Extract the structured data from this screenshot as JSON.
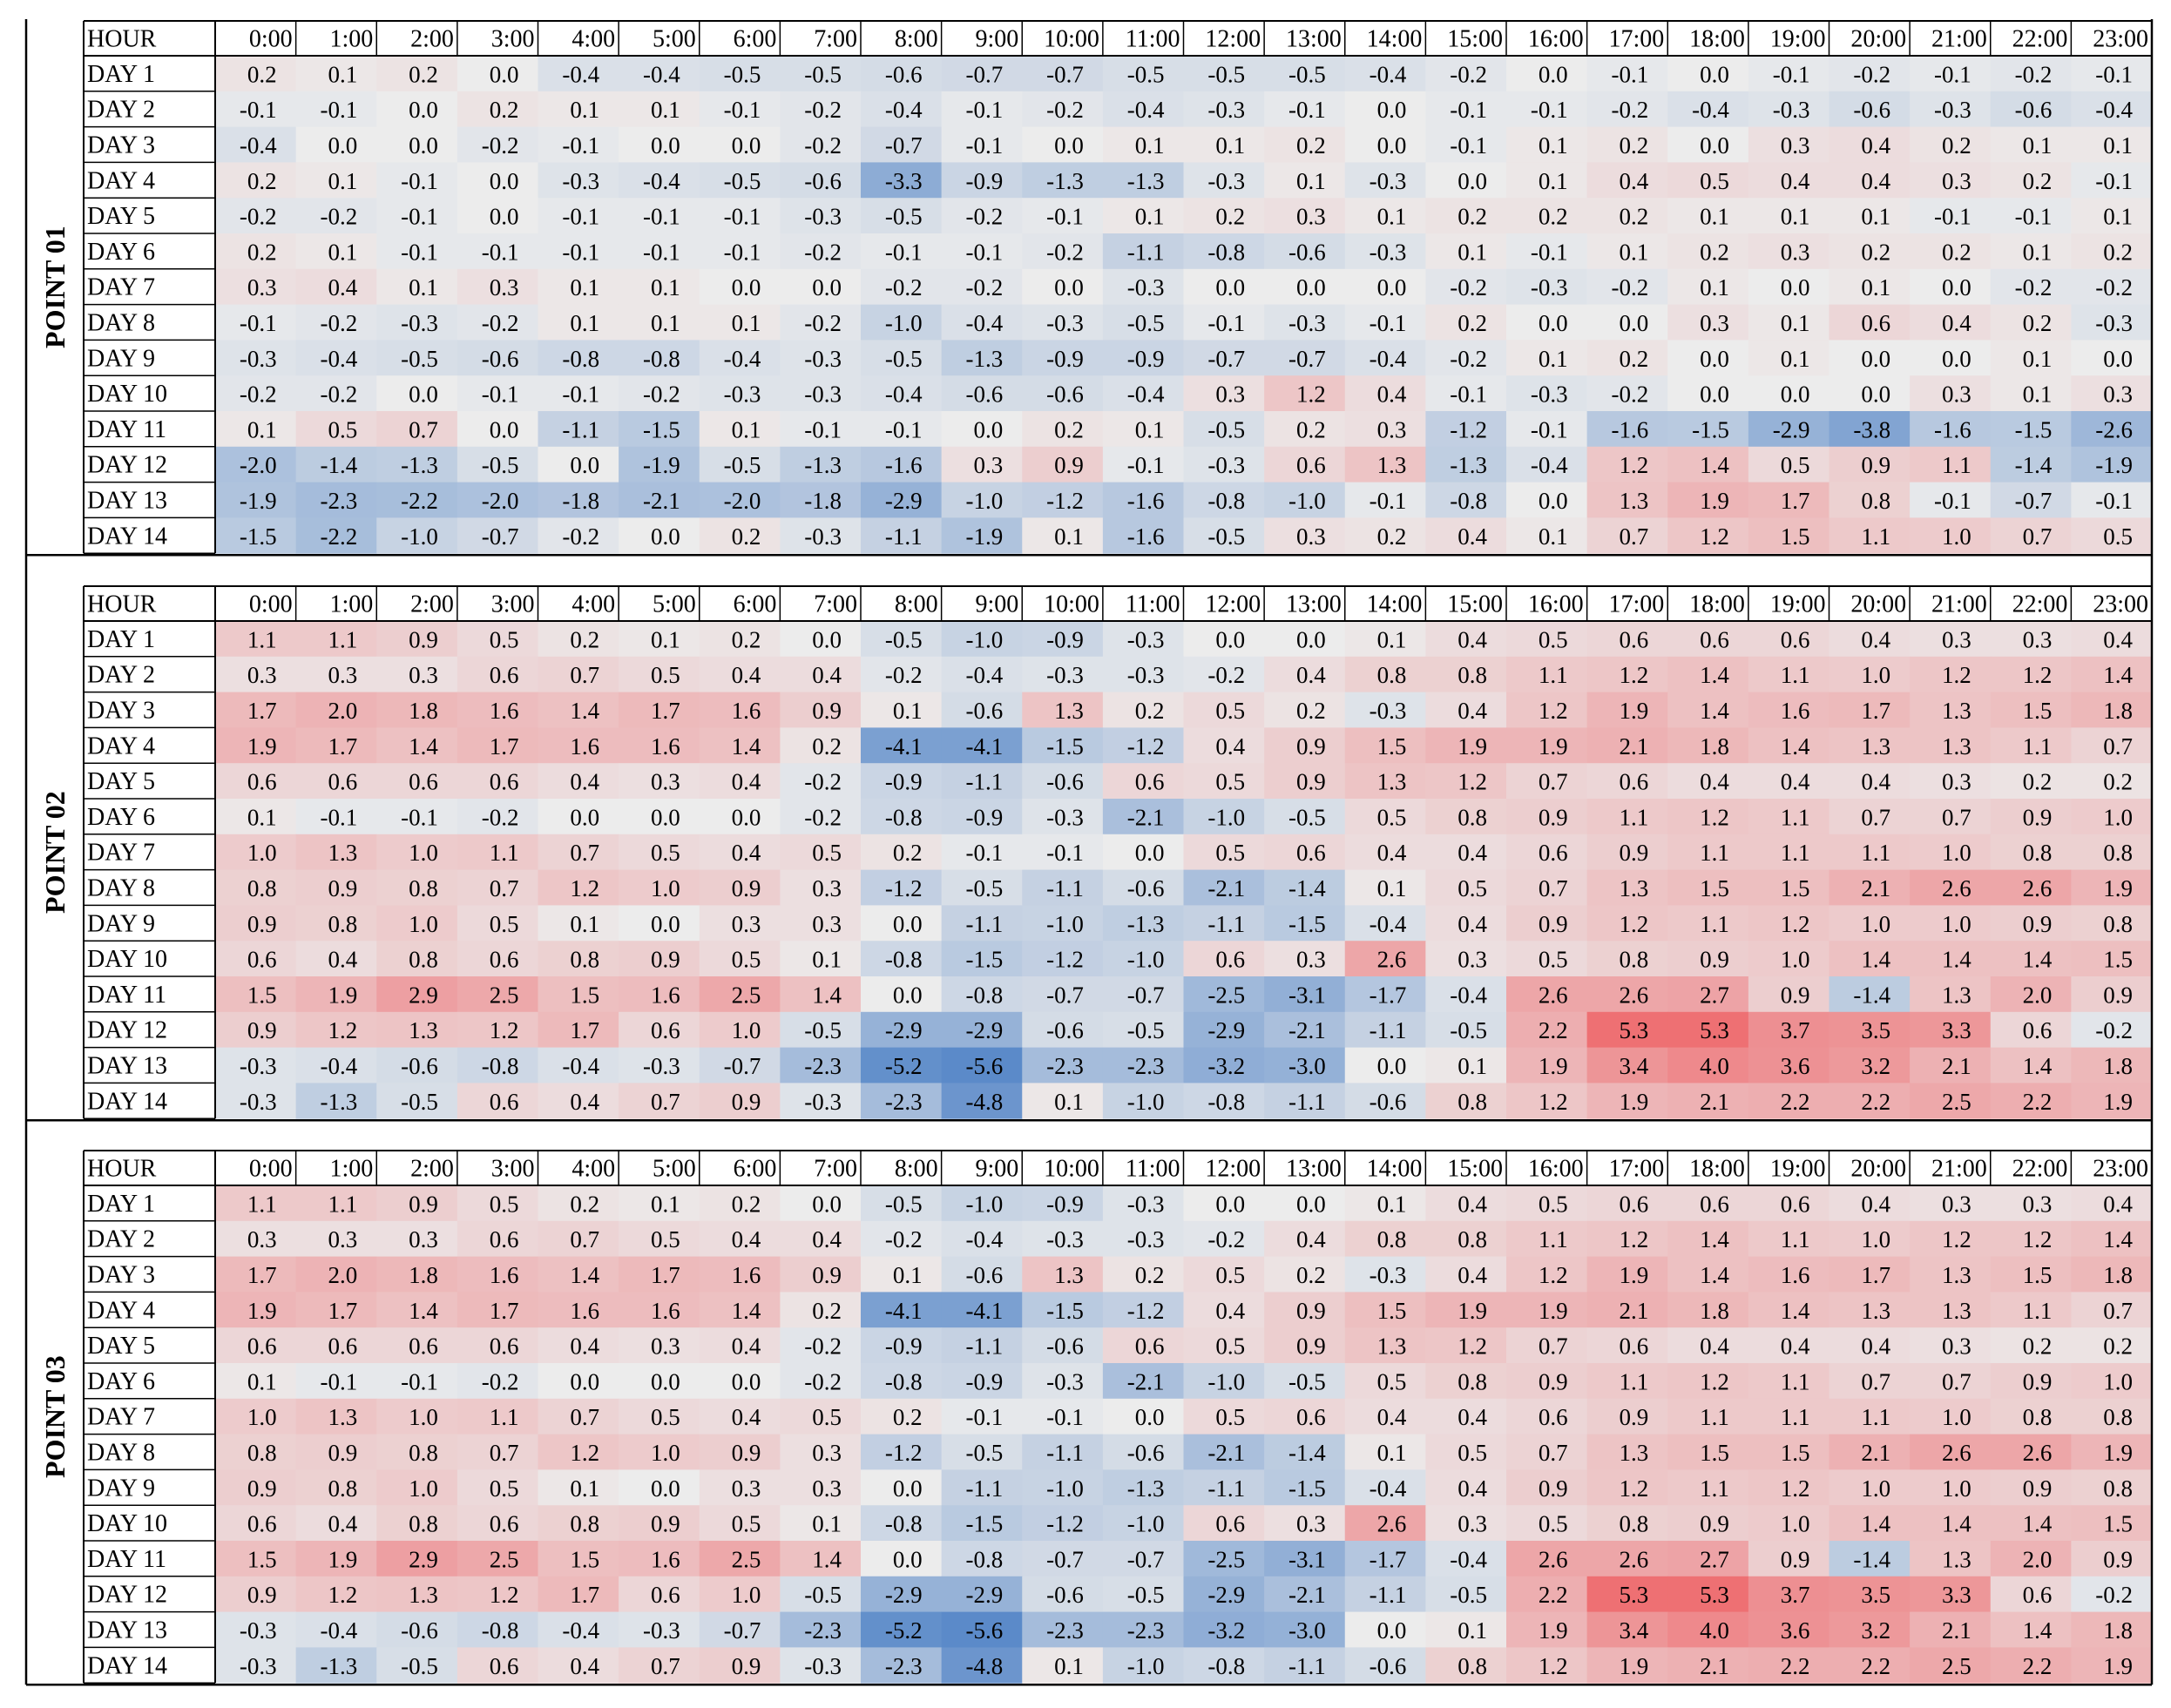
{
  "chart_data": {
    "type": "heatmap",
    "hour_header": "HOUR",
    "hours": [
      "0:00",
      "1:00",
      "2:00",
      "3:00",
      "4:00",
      "5:00",
      "6:00",
      "7:00",
      "8:00",
      "9:00",
      "10:00",
      "11:00",
      "12:00",
      "13:00",
      "14:00",
      "15:00",
      "16:00",
      "17:00",
      "18:00",
      "19:00",
      "20:00",
      "21:00",
      "22:00",
      "23:00"
    ],
    "days": [
      "DAY 1",
      "DAY 2",
      "DAY 3",
      "DAY 4",
      "DAY 5",
      "DAY 6",
      "DAY 7",
      "DAY 8",
      "DAY 9",
      "DAY 10",
      "DAY 11",
      "DAY 12",
      "DAY 13",
      "DAY 14"
    ],
    "color_scale": {
      "negative": "#5b8ac9",
      "neutral": "#ececec",
      "positive": "#ee6a6e"
    },
    "panels": [
      {
        "name": "POINT 01",
        "values": [
          [
            0.2,
            0.1,
            0.2,
            0.0,
            -0.4,
            -0.4,
            -0.5,
            -0.5,
            -0.6,
            -0.7,
            -0.7,
            -0.5,
            -0.5,
            -0.5,
            -0.4,
            -0.2,
            0.0,
            -0.1,
            0.0,
            -0.1,
            -0.2,
            -0.1,
            -0.2,
            -0.1
          ],
          [
            -0.1,
            -0.1,
            0.0,
            0.2,
            0.1,
            0.1,
            -0.1,
            -0.2,
            -0.4,
            -0.1,
            -0.2,
            -0.4,
            -0.3,
            -0.1,
            0.0,
            -0.1,
            -0.1,
            -0.2,
            -0.4,
            -0.3,
            -0.6,
            -0.3,
            -0.6,
            -0.4
          ],
          [
            -0.4,
            0.0,
            0.0,
            -0.2,
            -0.1,
            0.0,
            0.0,
            -0.2,
            -0.7,
            -0.1,
            0.0,
            0.1,
            0.1,
            0.2,
            0.0,
            -0.1,
            0.1,
            0.2,
            0.0,
            0.3,
            0.4,
            0.2,
            0.1,
            0.1
          ],
          [
            0.2,
            0.1,
            -0.1,
            0.0,
            -0.3,
            -0.4,
            -0.5,
            -0.6,
            -3.3,
            -0.9,
            -1.3,
            -1.3,
            -0.3,
            0.1,
            -0.3,
            0.0,
            0.1,
            0.4,
            0.5,
            0.4,
            0.4,
            0.3,
            0.2,
            -0.1
          ],
          [
            -0.2,
            -0.2,
            -0.1,
            0.0,
            -0.1,
            -0.1,
            -0.1,
            -0.3,
            -0.5,
            -0.2,
            -0.1,
            0.1,
            0.2,
            0.3,
            0.1,
            0.2,
            0.2,
            0.2,
            0.1,
            0.1,
            0.1,
            -0.1,
            -0.1,
            0.1
          ],
          [
            0.2,
            0.1,
            -0.1,
            -0.1,
            -0.1,
            -0.1,
            -0.1,
            -0.2,
            -0.1,
            -0.1,
            -0.2,
            -1.1,
            -0.8,
            -0.6,
            -0.3,
            0.1,
            -0.1,
            0.1,
            0.2,
            0.3,
            0.2,
            0.2,
            0.1,
            0.2
          ],
          [
            0.3,
            0.4,
            0.1,
            0.3,
            0.1,
            0.1,
            0.0,
            0.0,
            -0.2,
            -0.2,
            0.0,
            -0.3,
            0.0,
            0.0,
            0.0,
            -0.2,
            -0.3,
            -0.2,
            0.1,
            0.0,
            0.1,
            0.0,
            -0.2,
            -0.2
          ],
          [
            -0.1,
            -0.2,
            -0.3,
            -0.2,
            0.1,
            0.1,
            0.1,
            -0.2,
            -1.0,
            -0.4,
            -0.3,
            -0.5,
            -0.1,
            -0.3,
            -0.1,
            0.2,
            0.0,
            0.0,
            0.3,
            0.1,
            0.6,
            0.4,
            0.2,
            -0.3
          ],
          [
            -0.3,
            -0.4,
            -0.5,
            -0.6,
            -0.8,
            -0.8,
            -0.4,
            -0.3,
            -0.5,
            -1.3,
            -0.9,
            -0.9,
            -0.7,
            -0.7,
            -0.4,
            -0.2,
            0.1,
            0.2,
            0.0,
            0.1,
            0.0,
            0.0,
            0.1,
            0.0
          ],
          [
            -0.2,
            -0.2,
            0.0,
            -0.1,
            -0.1,
            -0.2,
            -0.3,
            -0.3,
            -0.4,
            -0.6,
            -0.6,
            -0.4,
            0.3,
            1.2,
            0.4,
            -0.1,
            -0.3,
            -0.2,
            0.0,
            0.0,
            0.0,
            0.3,
            0.1,
            0.3
          ],
          [
            0.1,
            0.5,
            0.7,
            0.0,
            -1.1,
            -1.5,
            0.1,
            -0.1,
            -0.1,
            0.0,
            0.2,
            0.1,
            -0.5,
            0.2,
            0.3,
            -1.2,
            -0.1,
            -1.6,
            -1.5,
            -2.9,
            -3.8,
            -1.6,
            -1.5,
            -2.6
          ],
          [
            -2.0,
            -1.4,
            -1.3,
            -0.5,
            0.0,
            -1.9,
            -0.5,
            -1.3,
            -1.6,
            0.3,
            0.9,
            -0.1,
            -0.3,
            0.6,
            1.3,
            -1.3,
            -0.4,
            1.2,
            1.4,
            0.5,
            0.9,
            1.1,
            -1.4,
            -1.9
          ],
          [
            -1.9,
            -2.3,
            -2.2,
            -2.0,
            -1.8,
            -2.1,
            -2.0,
            -1.8,
            -2.9,
            -1.0,
            -1.2,
            -1.6,
            -0.8,
            -1.0,
            -0.1,
            -0.8,
            0.0,
            1.3,
            1.9,
            1.7,
            0.8,
            -0.1,
            -0.7,
            -0.1
          ],
          [
            -1.5,
            -2.2,
            -1.0,
            -0.7,
            -0.2,
            0.0,
            0.2,
            -0.3,
            -1.1,
            -1.9,
            0.1,
            -1.6,
            -0.5,
            0.3,
            0.2,
            0.4,
            0.1,
            0.7,
            1.2,
            1.5,
            1.1,
            1.0,
            0.7,
            0.5
          ]
        ]
      },
      {
        "name": "POINT 02",
        "values": [
          [
            1.1,
            1.1,
            0.9,
            0.5,
            0.2,
            0.1,
            0.2,
            0.0,
            -0.5,
            -1.0,
            -0.9,
            -0.3,
            0.0,
            0.0,
            0.1,
            0.4,
            0.5,
            0.6,
            0.6,
            0.6,
            0.4,
            0.3,
            0.3,
            0.4
          ],
          [
            0.3,
            0.3,
            0.3,
            0.6,
            0.7,
            0.5,
            0.4,
            0.4,
            -0.2,
            -0.4,
            -0.3,
            -0.3,
            -0.2,
            0.4,
            0.8,
            0.8,
            1.1,
            1.2,
            1.4,
            1.1,
            1.0,
            1.2,
            1.2,
            1.4
          ],
          [
            1.7,
            2.0,
            1.8,
            1.6,
            1.4,
            1.7,
            1.6,
            0.9,
            0.1,
            -0.6,
            1.3,
            0.2,
            0.5,
            0.2,
            -0.3,
            0.4,
            1.2,
            1.9,
            1.4,
            1.6,
            1.7,
            1.3,
            1.5,
            1.8
          ],
          [
            1.9,
            1.7,
            1.4,
            1.7,
            1.6,
            1.6,
            1.4,
            0.2,
            -4.1,
            -4.1,
            -1.5,
            -1.2,
            0.4,
            0.9,
            1.5,
            1.9,
            1.9,
            2.1,
            1.8,
            1.4,
            1.3,
            1.3,
            1.1,
            0.7
          ],
          [
            0.6,
            0.6,
            0.6,
            0.6,
            0.4,
            0.3,
            0.4,
            -0.2,
            -0.9,
            -1.1,
            -0.6,
            0.6,
            0.5,
            0.9,
            1.3,
            1.2,
            0.7,
            0.6,
            0.4,
            0.4,
            0.4,
            0.3,
            0.2,
            0.2
          ],
          [
            0.1,
            -0.1,
            -0.1,
            -0.2,
            0.0,
            0.0,
            0.0,
            -0.2,
            -0.8,
            -0.9,
            -0.3,
            -2.1,
            -1.0,
            -0.5,
            0.5,
            0.8,
            0.9,
            1.1,
            1.2,
            1.1,
            0.7,
            0.7,
            0.9,
            1.0
          ],
          [
            1.0,
            1.3,
            1.0,
            1.1,
            0.7,
            0.5,
            0.4,
            0.5,
            0.2,
            -0.1,
            -0.1,
            0.0,
            0.5,
            0.6,
            0.4,
            0.4,
            0.6,
            0.9,
            1.1,
            1.1,
            1.1,
            1.0,
            0.8,
            0.8
          ],
          [
            0.8,
            0.9,
            0.8,
            0.7,
            1.2,
            1.0,
            0.9,
            0.3,
            -1.2,
            -0.5,
            -1.1,
            -0.6,
            -2.1,
            -1.4,
            0.1,
            0.5,
            0.7,
            1.3,
            1.5,
            1.5,
            2.1,
            2.6,
            2.6,
            1.9
          ],
          [
            0.9,
            0.8,
            1.0,
            0.5,
            0.1,
            0.0,
            0.3,
            0.3,
            0.0,
            -1.1,
            -1.0,
            -1.3,
            -1.1,
            -1.5,
            -0.4,
            0.4,
            0.9,
            1.2,
            1.1,
            1.2,
            1.0,
            1.0,
            0.9,
            0.8
          ],
          [
            0.6,
            0.4,
            0.8,
            0.6,
            0.8,
            0.9,
            0.5,
            0.1,
            -0.8,
            -1.5,
            -1.2,
            -1.0,
            0.6,
            0.3,
            2.6,
            0.3,
            0.5,
            0.8,
            0.9,
            1.0,
            1.4,
            1.4,
            1.4,
            1.5
          ],
          [
            1.5,
            1.9,
            2.9,
            2.5,
            1.5,
            1.6,
            2.5,
            1.4,
            0.0,
            -0.8,
            -0.7,
            -0.7,
            -2.5,
            -3.1,
            -1.7,
            -0.4,
            2.6,
            2.6,
            2.7,
            0.9,
            -1.4,
            1.3,
            2.0,
            0.9
          ],
          [
            0.9,
            1.2,
            1.3,
            1.2,
            1.7,
            0.6,
            1.0,
            -0.5,
            -2.9,
            -2.9,
            -0.6,
            -0.5,
            -2.9,
            -2.1,
            -1.1,
            -0.5,
            2.2,
            5.3,
            5.3,
            3.7,
            3.5,
            3.3,
            0.6,
            -0.2
          ],
          [
            -0.3,
            -0.4,
            -0.6,
            -0.8,
            -0.4,
            -0.3,
            -0.7,
            -2.3,
            -5.2,
            -5.6,
            -2.3,
            -2.3,
            -3.2,
            -3.0,
            0.0,
            0.1,
            1.9,
            3.4,
            4.0,
            3.6,
            3.2,
            2.1,
            1.4,
            1.8
          ],
          [
            -0.3,
            -1.3,
            -0.5,
            0.6,
            0.4,
            0.7,
            0.9,
            -0.3,
            -2.3,
            -4.8,
            0.1,
            -1.0,
            -0.8,
            -1.1,
            -0.6,
            0.8,
            1.2,
            1.9,
            2.1,
            2.2,
            2.2,
            2.5,
            2.2,
            1.9
          ]
        ]
      },
      {
        "name": "POINT 03",
        "values": [
          [
            1.1,
            1.1,
            0.9,
            0.5,
            0.2,
            0.1,
            0.2,
            0.0,
            -0.5,
            -1.0,
            -0.9,
            -0.3,
            0.0,
            0.0,
            0.1,
            0.4,
            0.5,
            0.6,
            0.6,
            0.6,
            0.4,
            0.3,
            0.3,
            0.4
          ],
          [
            0.3,
            0.3,
            0.3,
            0.6,
            0.7,
            0.5,
            0.4,
            0.4,
            -0.2,
            -0.4,
            -0.3,
            -0.3,
            -0.2,
            0.4,
            0.8,
            0.8,
            1.1,
            1.2,
            1.4,
            1.1,
            1.0,
            1.2,
            1.2,
            1.4
          ],
          [
            1.7,
            2.0,
            1.8,
            1.6,
            1.4,
            1.7,
            1.6,
            0.9,
            0.1,
            -0.6,
            1.3,
            0.2,
            0.5,
            0.2,
            -0.3,
            0.4,
            1.2,
            1.9,
            1.4,
            1.6,
            1.7,
            1.3,
            1.5,
            1.8
          ],
          [
            1.9,
            1.7,
            1.4,
            1.7,
            1.6,
            1.6,
            1.4,
            0.2,
            -4.1,
            -4.1,
            -1.5,
            -1.2,
            0.4,
            0.9,
            1.5,
            1.9,
            1.9,
            2.1,
            1.8,
            1.4,
            1.3,
            1.3,
            1.1,
            0.7
          ],
          [
            0.6,
            0.6,
            0.6,
            0.6,
            0.4,
            0.3,
            0.4,
            -0.2,
            -0.9,
            -1.1,
            -0.6,
            0.6,
            0.5,
            0.9,
            1.3,
            1.2,
            0.7,
            0.6,
            0.4,
            0.4,
            0.4,
            0.3,
            0.2,
            0.2
          ],
          [
            0.1,
            -0.1,
            -0.1,
            -0.2,
            0.0,
            0.0,
            0.0,
            -0.2,
            -0.8,
            -0.9,
            -0.3,
            -2.1,
            -1.0,
            -0.5,
            0.5,
            0.8,
            0.9,
            1.1,
            1.2,
            1.1,
            0.7,
            0.7,
            0.9,
            1.0
          ],
          [
            1.0,
            1.3,
            1.0,
            1.1,
            0.7,
            0.5,
            0.4,
            0.5,
            0.2,
            -0.1,
            -0.1,
            0.0,
            0.5,
            0.6,
            0.4,
            0.4,
            0.6,
            0.9,
            1.1,
            1.1,
            1.1,
            1.0,
            0.8,
            0.8
          ],
          [
            0.8,
            0.9,
            0.8,
            0.7,
            1.2,
            1.0,
            0.9,
            0.3,
            -1.2,
            -0.5,
            -1.1,
            -0.6,
            -2.1,
            -1.4,
            0.1,
            0.5,
            0.7,
            1.3,
            1.5,
            1.5,
            2.1,
            2.6,
            2.6,
            1.9
          ],
          [
            0.9,
            0.8,
            1.0,
            0.5,
            0.1,
            0.0,
            0.3,
            0.3,
            0.0,
            -1.1,
            -1.0,
            -1.3,
            -1.1,
            -1.5,
            -0.4,
            0.4,
            0.9,
            1.2,
            1.1,
            1.2,
            1.0,
            1.0,
            0.9,
            0.8
          ],
          [
            0.6,
            0.4,
            0.8,
            0.6,
            0.8,
            0.9,
            0.5,
            0.1,
            -0.8,
            -1.5,
            -1.2,
            -1.0,
            0.6,
            0.3,
            2.6,
            0.3,
            0.5,
            0.8,
            0.9,
            1.0,
            1.4,
            1.4,
            1.4,
            1.5
          ],
          [
            1.5,
            1.9,
            2.9,
            2.5,
            1.5,
            1.6,
            2.5,
            1.4,
            0.0,
            -0.8,
            -0.7,
            -0.7,
            -2.5,
            -3.1,
            -1.7,
            -0.4,
            2.6,
            2.6,
            2.7,
            0.9,
            -1.4,
            1.3,
            2.0,
            0.9
          ],
          [
            0.9,
            1.2,
            1.3,
            1.2,
            1.7,
            0.6,
            1.0,
            -0.5,
            -2.9,
            -2.9,
            -0.6,
            -0.5,
            -2.9,
            -2.1,
            -1.1,
            -0.5,
            2.2,
            5.3,
            5.3,
            3.7,
            3.5,
            3.3,
            0.6,
            -0.2
          ],
          [
            -0.3,
            -0.4,
            -0.6,
            -0.8,
            -0.4,
            -0.3,
            -0.7,
            -2.3,
            -5.2,
            -5.6,
            -2.3,
            -2.3,
            -3.2,
            -3.0,
            0.0,
            0.1,
            1.9,
            3.4,
            4.0,
            3.6,
            3.2,
            2.1,
            1.4,
            1.8
          ],
          [
            -0.3,
            -1.3,
            -0.5,
            0.6,
            0.4,
            0.7,
            0.9,
            -0.3,
            -2.3,
            -4.8,
            0.1,
            -1.0,
            -0.8,
            -1.1,
            -0.6,
            0.8,
            1.2,
            1.9,
            2.1,
            2.2,
            2.2,
            2.5,
            2.2,
            1.9
          ]
        ]
      }
    ]
  }
}
